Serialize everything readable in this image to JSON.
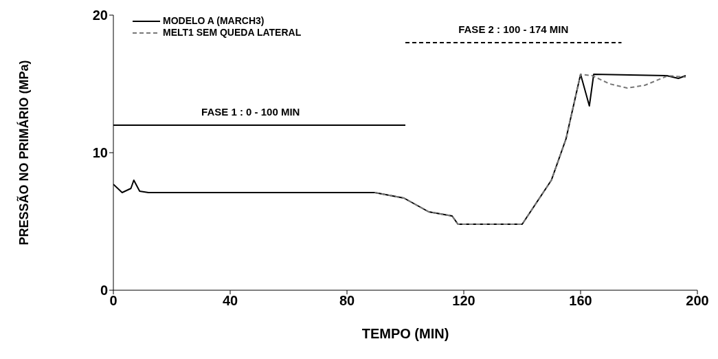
{
  "chart_data": {
    "type": "line",
    "xlabel": "TEMPO (MIN)",
    "ylabel": "PRESSÃO NO PRIMÁRIO (MPa)",
    "xlim": [
      0,
      200
    ],
    "xticks": [
      0,
      40,
      80,
      120,
      160,
      200
    ],
    "ylim": [
      0,
      20
    ],
    "yticks": [
      0,
      10,
      20
    ],
    "grid": false,
    "legend": "top left",
    "marker": "none",
    "annotations": [
      {
        "text": "FASE 1 : 0 - 100 MIN",
        "x": 47,
        "y": 12
      },
      {
        "text": "FASE 2 : 100 - 174 MIN",
        "x": 137,
        "y": 18
      }
    ],
    "series": [
      {
        "name": "MODELO A (MARCH3)",
        "color": "#000000",
        "line_style": "solid",
        "x": [
          0,
          3,
          6,
          7,
          9,
          12,
          89.5,
          99.5,
          108,
          116,
          118,
          136,
          140,
          150,
          155,
          160,
          163,
          164.5,
          189.5,
          193.5,
          196
        ],
        "values": [
          7.7,
          7.1,
          7.4,
          8.0,
          7.2,
          7.1,
          7.1,
          6.7,
          5.7,
          5.4,
          4.8,
          4.8,
          4.8,
          8.0,
          11.0,
          15.7,
          13.4,
          15.7,
          15.6,
          15.4,
          15.6
        ]
      },
      {
        "name": "MELT1 SEM QUEDA LATERAL",
        "color": "#777777",
        "line_style": "dashed",
        "x": [
          89.5,
          99.5,
          108,
          116,
          118,
          136,
          140,
          150,
          155,
          160,
          164,
          170,
          176,
          182,
          190,
          196
        ],
        "values": [
          7.1,
          6.7,
          5.7,
          5.4,
          4.8,
          4.8,
          4.8,
          8.0,
          11.0,
          15.7,
          15.6,
          15.0,
          14.7,
          14.9,
          15.6,
          15.5
        ]
      },
      {
        "color": "#000000",
        "line_style": "solid",
        "x": [
          0,
          100
        ],
        "values": [
          12,
          12
        ]
      },
      {
        "color": "#000000",
        "line_style": "dashed",
        "x": [
          100,
          174
        ],
        "values": [
          18,
          18
        ]
      }
    ]
  }
}
